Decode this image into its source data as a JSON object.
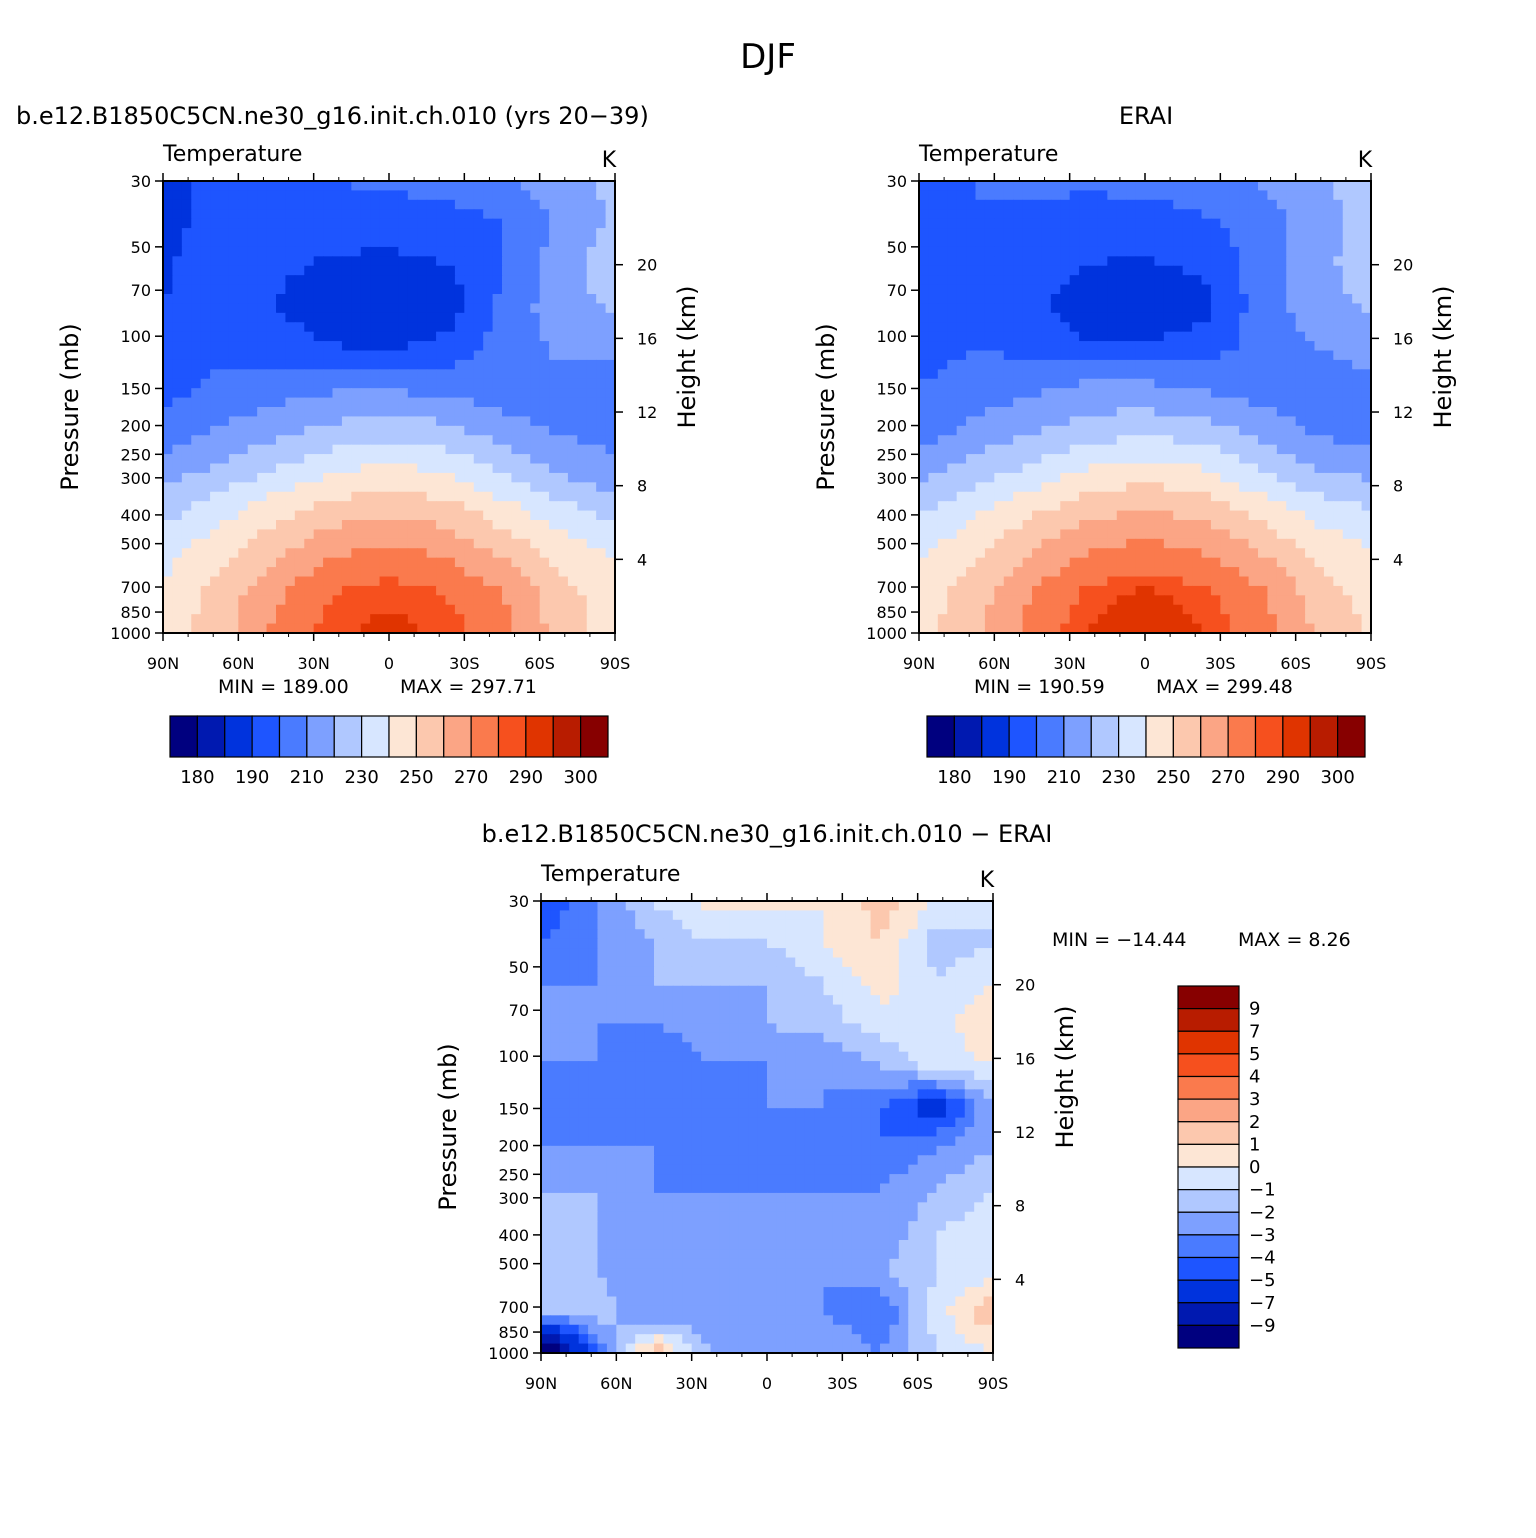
{
  "figure_title": "DJF",
  "chart_data": [
    {
      "type": "heatmap",
      "title": "b.e12.B1850C5CN.ne30_g16.init.ch.010 (yrs 20−39)",
      "subtitle": "Temperature",
      "units": "K",
      "xlabel": "",
      "ylabel": "Pressure (mb)",
      "ylabel_right": "Height (km)",
      "x_ticks": [
        "90N",
        "60N",
        "30N",
        "0",
        "30S",
        "60S",
        "90S"
      ],
      "x_values": [
        90,
        60,
        30,
        0,
        -30,
        -60,
        -90
      ],
      "xlim": [
        90,
        -90
      ],
      "y_ticks": [
        30,
        50,
        70,
        100,
        150,
        200,
        250,
        300,
        400,
        500,
        700,
        850,
        1000
      ],
      "ylim": [
        1000,
        30
      ],
      "y_scale": "log",
      "y_right_ticks": [
        20,
        16,
        12,
        8,
        4
      ],
      "min_label": "MIN = 189.00",
      "max_label": "MAX = 297.71",
      "min": 189.0,
      "max": 297.71,
      "grid": [
        [
          195,
          205,
          210,
          210,
          212,
          214,
          218,
          226,
          232
        ],
        [
          194,
          207,
          206,
          204,
          204,
          206,
          210,
          222,
          232
        ],
        [
          198,
          208,
          202,
          199,
          198,
          200,
          210,
          224,
          236
        ],
        [
          200,
          208,
          200,
          192,
          189,
          193,
          212,
          226,
          232
        ],
        [
          204,
          208,
          205,
          200,
          198,
          203,
          214,
          222,
          222
        ],
        [
          206,
          212,
          215,
          218,
          218,
          216,
          214,
          216,
          216
        ],
        [
          212,
          220,
          226,
          232,
          234,
          232,
          224,
          218,
          216
        ],
        [
          224,
          232,
          240,
          248,
          252,
          248,
          238,
          228,
          222
        ],
        [
          236,
          246,
          256,
          264,
          268,
          264,
          254,
          244,
          236
        ],
        [
          246,
          256,
          268,
          278,
          282,
          278,
          268,
          256,
          248
        ],
        [
          252,
          264,
          278,
          290,
          294,
          290,
          280,
          264,
          254
        ],
        [
          254,
          266,
          282,
          294,
          297,
          294,
          284,
          266,
          256
        ]
      ],
      "colorbar_levels": [
        180,
        185,
        190,
        200,
        210,
        220,
        230,
        240,
        250,
        260,
        270,
        280,
        290,
        295,
        300
      ],
      "colorbar_labels": [
        "180",
        "190",
        "210",
        "230",
        "250",
        "270",
        "290",
        "300"
      ]
    },
    {
      "type": "heatmap",
      "title": "ERAI",
      "subtitle": "Temperature",
      "units": "K",
      "xlabel": "",
      "ylabel": "Pressure (mb)",
      "ylabel_right": "Height (km)",
      "x_ticks": [
        "90N",
        "60N",
        "30N",
        "0",
        "30S",
        "60S",
        "90S"
      ],
      "x_values": [
        90,
        60,
        30,
        0,
        -30,
        -60,
        -90
      ],
      "xlim": [
        90,
        -90
      ],
      "y_ticks": [
        30,
        50,
        70,
        100,
        150,
        200,
        250,
        300,
        400,
        500,
        700,
        850,
        1000
      ],
      "ylim": [
        1000,
        30
      ],
      "y_scale": "log",
      "y_right_ticks": [
        20,
        16,
        12,
        8,
        4
      ],
      "min_label": "MIN = 190.59",
      "max_label": "MAX = 299.48",
      "min": 190.59,
      "max": 299.48,
      "grid": [
        [
          205,
          210,
          212,
          212,
          214,
          216,
          220,
          228,
          234
        ],
        [
          206,
          210,
          208,
          205,
          205,
          208,
          214,
          226,
          234
        ],
        [
          206,
          210,
          204,
          200,
          199,
          202,
          214,
          226,
          236
        ],
        [
          206,
          210,
          202,
          195,
          194,
          196,
          214,
          226,
          232
        ],
        [
          206,
          210,
          206,
          200,
          200,
          204,
          214,
          220,
          224
        ],
        [
          210,
          214,
          218,
          222,
          222,
          218,
          214,
          216,
          218
        ],
        [
          214,
          222,
          228,
          234,
          236,
          234,
          226,
          218,
          214
        ],
        [
          226,
          234,
          242,
          250,
          254,
          250,
          240,
          230,
          226
        ],
        [
          238,
          248,
          258,
          266,
          270,
          266,
          256,
          246,
          240
        ],
        [
          248,
          258,
          270,
          280,
          284,
          280,
          270,
          258,
          250
        ],
        [
          254,
          266,
          280,
          292,
          296,
          292,
          282,
          266,
          256
        ],
        [
          256,
          268,
          284,
          296,
          299,
          296,
          286,
          270,
          258
        ]
      ],
      "colorbar_levels": [
        180,
        185,
        190,
        200,
        210,
        220,
        230,
        240,
        250,
        260,
        270,
        280,
        290,
        295,
        300
      ],
      "colorbar_labels": [
        "180",
        "190",
        "210",
        "230",
        "250",
        "270",
        "290",
        "300"
      ]
    },
    {
      "type": "heatmap",
      "title": "b.e12.B1850C5CN.ne30_g16.init.ch.010 − ERAI",
      "subtitle": "Temperature",
      "units": "K",
      "xlabel": "",
      "ylabel": "Pressure (mb)",
      "ylabel_right": "Height (km)",
      "x_ticks": [
        "90N",
        "60N",
        "30N",
        "0",
        "30S",
        "60S",
        "90S"
      ],
      "x_values": [
        90,
        60,
        30,
        0,
        -30,
        -60,
        -90
      ],
      "xlim": [
        90,
        -90
      ],
      "y_ticks": [
        30,
        50,
        70,
        100,
        150,
        200,
        250,
        300,
        400,
        500,
        700,
        850,
        1000
      ],
      "ylim": [
        1000,
        30
      ],
      "y_scale": "log",
      "y_right_ticks": [
        20,
        16,
        12,
        8,
        4
      ],
      "min_label": "MIN = −14.44",
      "max_label": "MAX =    8.26",
      "min": -14.44,
      "max": 8.26,
      "grid": [
        [
          -5,
          -3,
          -1,
          0.5,
          0.5,
          0,
          1.5,
          0,
          -1
        ],
        [
          -4,
          -3,
          -2,
          -1,
          -1,
          0,
          1,
          -1.5,
          -1
        ],
        [
          -3,
          -3,
          -2,
          -2,
          -2,
          -1,
          0.5,
          -1,
          0
        ],
        [
          -3,
          -3,
          -3,
          -2.5,
          -2,
          -1.5,
          -0.5,
          -0.5,
          1
        ],
        [
          -3,
          -3,
          -4,
          -3,
          -3,
          -3,
          -2,
          -0.5,
          0
        ],
        [
          -4,
          -4,
          -4,
          -4,
          -3,
          -3,
          -4,
          -6,
          -2
        ],
        [
          -3,
          -3,
          -3,
          -4,
          -4,
          -4,
          -4,
          -3,
          -2
        ],
        [
          -2,
          -2,
          -3,
          -3,
          -3,
          -3,
          -3,
          -2,
          -1
        ],
        [
          -2,
          -2,
          -3,
          -3,
          -3,
          -3,
          -3,
          -1,
          -0.5
        ],
        [
          -2,
          -2,
          -3,
          -3,
          -3,
          -3,
          -2,
          -1,
          -0.5
        ],
        [
          -2,
          -1.5,
          -3,
          -3,
          -3,
          -3,
          -4,
          -0.5,
          2
        ],
        [
          -12,
          -4,
          2,
          -2,
          -2,
          -2,
          -3,
          -1,
          0
        ]
      ],
      "colorbar_levels": [
        -11,
        -9,
        -7,
        -5,
        -4,
        -3,
        -2,
        -1,
        0,
        1,
        2,
        3,
        4,
        5,
        7,
        9,
        11
      ],
      "colorbar_labels": [
        "9",
        "7",
        "5",
        "4",
        "3",
        "2",
        "1",
        "0",
        "−1",
        "−2",
        "−3",
        "−4",
        "−5",
        "−7",
        "−9"
      ]
    }
  ],
  "colors": {
    "abs_palette": [
      "#00007f",
      "#0019b0",
      "#0033dd",
      "#1e55ff",
      "#4a7bff",
      "#7da0ff",
      "#b0c8ff",
      "#d7e6ff",
      "#fde6d5",
      "#fcc8ae",
      "#fba585",
      "#fa7a4d",
      "#f6501e",
      "#e03400",
      "#b81c00",
      "#870000"
    ],
    "diff_palette": [
      "#00007f",
      "#0019b0",
      "#0033dd",
      "#1e55ff",
      "#4a7bff",
      "#7da0ff",
      "#b0c8ff",
      "#d7e6ff",
      "#fde6d5",
      "#fcc8ae",
      "#fba585",
      "#fa7a4d",
      "#f6501e",
      "#e03400",
      "#b81c00",
      "#870000"
    ]
  }
}
